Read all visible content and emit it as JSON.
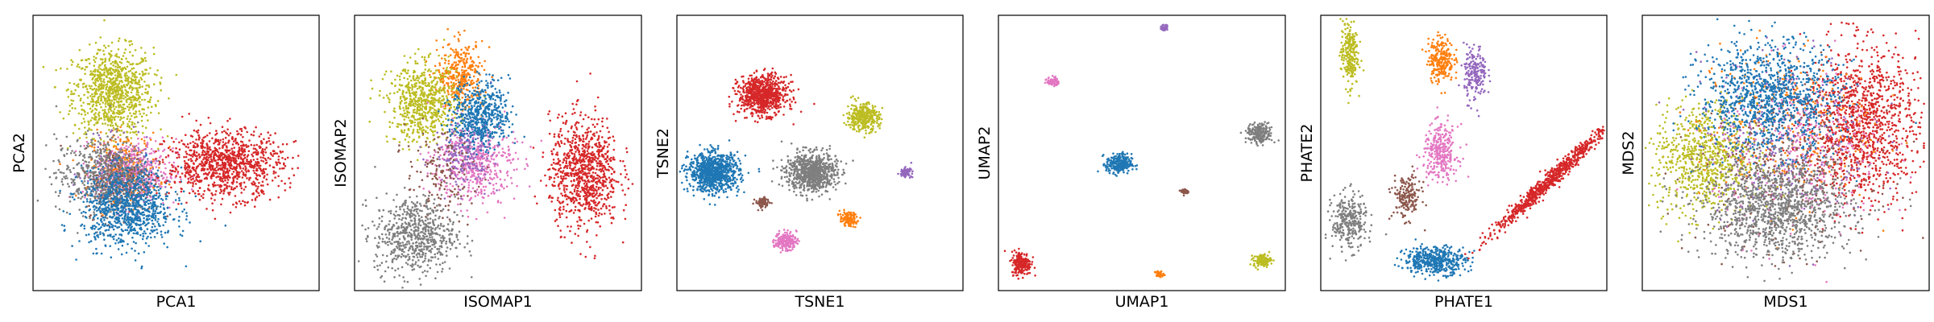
{
  "palette": {
    "blue": "#1f77b4",
    "orange": "#ff7f0e",
    "red": "#d62728",
    "purple": "#9467bd",
    "brown": "#8c564b",
    "pink": "#e377c2",
    "gray": "#7f7f7f",
    "olive": "#bcbd22"
  },
  "chart_data": [
    {
      "type": "scatter",
      "xlabel": "PCA1",
      "ylabel": "PCA2",
      "ticks": "none",
      "clusters": [
        {
          "color": "olive",
          "cx": 0.28,
          "cy": 0.72,
          "sx": 0.07,
          "sy": 0.08,
          "n": 900
        },
        {
          "color": "orange",
          "cx": 0.32,
          "cy": 0.45,
          "sx": 0.06,
          "sy": 0.06,
          "n": 250
        },
        {
          "color": "purple",
          "cx": 0.3,
          "cy": 0.42,
          "sx": 0.06,
          "sy": 0.06,
          "n": 250
        },
        {
          "color": "pink",
          "cx": 0.36,
          "cy": 0.43,
          "sx": 0.07,
          "sy": 0.06,
          "n": 300
        },
        {
          "color": "brown",
          "cx": 0.3,
          "cy": 0.4,
          "sx": 0.06,
          "sy": 0.06,
          "n": 250
        },
        {
          "color": "gray",
          "cx": 0.24,
          "cy": 0.42,
          "sx": 0.08,
          "sy": 0.07,
          "n": 500
        },
        {
          "color": "blue",
          "cx": 0.33,
          "cy": 0.3,
          "sx": 0.08,
          "sy": 0.07,
          "n": 900
        },
        {
          "color": "red",
          "cx": 0.67,
          "cy": 0.46,
          "sx": 0.1,
          "sy": 0.06,
          "n": 1000
        }
      ]
    },
    {
      "type": "scatter",
      "xlabel": "ISOMAP1",
      "ylabel": "ISOMAP2",
      "ticks": "none",
      "clusters": [
        {
          "color": "orange",
          "cx": 0.37,
          "cy": 0.78,
          "sx": 0.04,
          "sy": 0.06,
          "n": 350
        },
        {
          "color": "olive",
          "cx": 0.24,
          "cy": 0.68,
          "sx": 0.06,
          "sy": 0.07,
          "n": 650
        },
        {
          "color": "pink",
          "cx": 0.42,
          "cy": 0.46,
          "sx": 0.07,
          "sy": 0.07,
          "n": 450
        },
        {
          "color": "purple",
          "cx": 0.38,
          "cy": 0.5,
          "sx": 0.05,
          "sy": 0.06,
          "n": 200
        },
        {
          "color": "brown",
          "cx": 0.3,
          "cy": 0.42,
          "sx": 0.06,
          "sy": 0.08,
          "n": 150
        },
        {
          "color": "blue",
          "cx": 0.44,
          "cy": 0.64,
          "sx": 0.05,
          "sy": 0.06,
          "n": 550
        },
        {
          "color": "gray",
          "cx": 0.21,
          "cy": 0.2,
          "sx": 0.07,
          "sy": 0.07,
          "n": 650
        },
        {
          "color": "red",
          "cx": 0.8,
          "cy": 0.43,
          "sx": 0.06,
          "sy": 0.1,
          "n": 900
        }
      ]
    },
    {
      "type": "scatter",
      "xlabel": "TSNE1",
      "ylabel": "TSNE2",
      "ticks": "none",
      "clusters": [
        {
          "color": "red",
          "cx": 0.3,
          "cy": 0.71,
          "sx": 0.042,
          "sy": 0.035,
          "n": 800
        },
        {
          "color": "olive",
          "cx": 0.65,
          "cy": 0.63,
          "sx": 0.028,
          "sy": 0.025,
          "n": 350
        },
        {
          "color": "blue",
          "cx": 0.13,
          "cy": 0.43,
          "sx": 0.044,
          "sy": 0.035,
          "n": 900
        },
        {
          "color": "gray",
          "cx": 0.47,
          "cy": 0.43,
          "sx": 0.044,
          "sy": 0.035,
          "n": 800
        },
        {
          "color": "purple",
          "cx": 0.8,
          "cy": 0.43,
          "sx": 0.01,
          "sy": 0.008,
          "n": 80
        },
        {
          "color": "brown",
          "cx": 0.3,
          "cy": 0.32,
          "sx": 0.012,
          "sy": 0.01,
          "n": 80
        },
        {
          "color": "orange",
          "cx": 0.6,
          "cy": 0.26,
          "sx": 0.015,
          "sy": 0.013,
          "n": 120
        },
        {
          "color": "pink",
          "cx": 0.38,
          "cy": 0.18,
          "sx": 0.019,
          "sy": 0.016,
          "n": 180
        }
      ]
    },
    {
      "type": "scatter",
      "xlabel": "UMAP1",
      "ylabel": "UMAP2",
      "ticks": "none",
      "clusters": [
        {
          "color": "purple",
          "cx": 0.58,
          "cy": 0.955,
          "sx": 0.006,
          "sy": 0.006,
          "n": 40
        },
        {
          "color": "pink",
          "cx": 0.19,
          "cy": 0.76,
          "sx": 0.01,
          "sy": 0.008,
          "n": 70
        },
        {
          "color": "gray",
          "cx": 0.91,
          "cy": 0.57,
          "sx": 0.022,
          "sy": 0.018,
          "n": 220
        },
        {
          "color": "blue",
          "cx": 0.42,
          "cy": 0.46,
          "sx": 0.022,
          "sy": 0.018,
          "n": 250
        },
        {
          "color": "brown",
          "cx": 0.65,
          "cy": 0.36,
          "sx": 0.007,
          "sy": 0.006,
          "n": 40
        },
        {
          "color": "red",
          "cx": 0.08,
          "cy": 0.1,
          "sx": 0.017,
          "sy": 0.021,
          "n": 220
        },
        {
          "color": "olive",
          "cx": 0.92,
          "cy": 0.11,
          "sx": 0.015,
          "sy": 0.011,
          "n": 120
        },
        {
          "color": "orange",
          "cx": 0.56,
          "cy": 0.06,
          "sx": 0.008,
          "sy": 0.006,
          "n": 40
        }
      ]
    },
    {
      "type": "scatter",
      "xlabel": "PHATE1",
      "ylabel": "PHATE2",
      "ticks": "none",
      "clusters": [
        {
          "color": "olive",
          "cx": 0.1,
          "cy": 0.86,
          "sx": 0.015,
          "sy": 0.06,
          "n": 250
        },
        {
          "color": "orange",
          "cx": 0.42,
          "cy": 0.84,
          "sx": 0.022,
          "sy": 0.04,
          "n": 250
        },
        {
          "color": "purple",
          "cx": 0.54,
          "cy": 0.79,
          "sx": 0.02,
          "sy": 0.05,
          "n": 200
        },
        {
          "color": "pink",
          "cx": 0.42,
          "cy": 0.5,
          "sx": 0.03,
          "sy": 0.05,
          "n": 300
        },
        {
          "color": "brown",
          "cx": 0.3,
          "cy": 0.34,
          "sx": 0.025,
          "sy": 0.04,
          "n": 180
        },
        {
          "color": "gray",
          "cx": 0.1,
          "cy": 0.25,
          "sx": 0.03,
          "sy": 0.05,
          "n": 300
        },
        {
          "color": "blue",
          "cx": 0.4,
          "cy": 0.11,
          "sx": 0.055,
          "sy": 0.025,
          "n": 450
        },
        {
          "color": "red",
          "cx": 0.8,
          "cy": 0.4,
          "sx": 0.1,
          "sy": 0.1,
          "n": 800,
          "corr": 0.97
        }
      ]
    },
    {
      "type": "scatter",
      "xlabel": "MDS1",
      "ylabel": "MDS2",
      "ticks": "none",
      "clusters": [
        {
          "color": "red",
          "cx": 0.76,
          "cy": 0.61,
          "sx": 0.1,
          "sy": 0.14,
          "n": 1200
        },
        {
          "color": "olive",
          "cx": 0.22,
          "cy": 0.48,
          "sx": 0.09,
          "sy": 0.1,
          "n": 800
        },
        {
          "color": "orange",
          "cx": 0.5,
          "cy": 0.6,
          "sx": 0.15,
          "sy": 0.15,
          "n": 300
        },
        {
          "color": "purple",
          "cx": 0.5,
          "cy": 0.55,
          "sx": 0.15,
          "sy": 0.15,
          "n": 300
        },
        {
          "color": "pink",
          "cx": 0.55,
          "cy": 0.5,
          "sx": 0.15,
          "sy": 0.15,
          "n": 300
        },
        {
          "color": "brown",
          "cx": 0.5,
          "cy": 0.45,
          "sx": 0.15,
          "sy": 0.15,
          "n": 300
        },
        {
          "color": "blue",
          "cx": 0.44,
          "cy": 0.7,
          "sx": 0.12,
          "sy": 0.1,
          "n": 1100
        },
        {
          "color": "gray",
          "cx": 0.47,
          "cy": 0.3,
          "sx": 0.13,
          "sy": 0.09,
          "n": 1200
        }
      ]
    }
  ]
}
